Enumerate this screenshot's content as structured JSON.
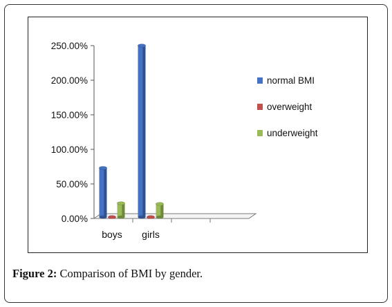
{
  "caption": {
    "label": "Figure 2:",
    "text": " Comparison of BMI by gender."
  },
  "chart_data": {
    "type": "bar",
    "categories": [
      "boys",
      "girls"
    ],
    "series": [
      {
        "name": "normal BMI",
        "values": [
          73,
          250
        ],
        "color": "#4472C4"
      },
      {
        "name": "overweight",
        "values": [
          2,
          2
        ],
        "color": "#C0504D"
      },
      {
        "name": "underweight",
        "values": [
          22,
          21
        ],
        "color": "#9BBB59"
      }
    ],
    "y_ticks": [
      "0.00%",
      "50.00%",
      "100.00%",
      "150.00%",
      "200.00%",
      "250.00%"
    ],
    "ylim": [
      0,
      250
    ],
    "legend_position": "right",
    "grid": false
  }
}
